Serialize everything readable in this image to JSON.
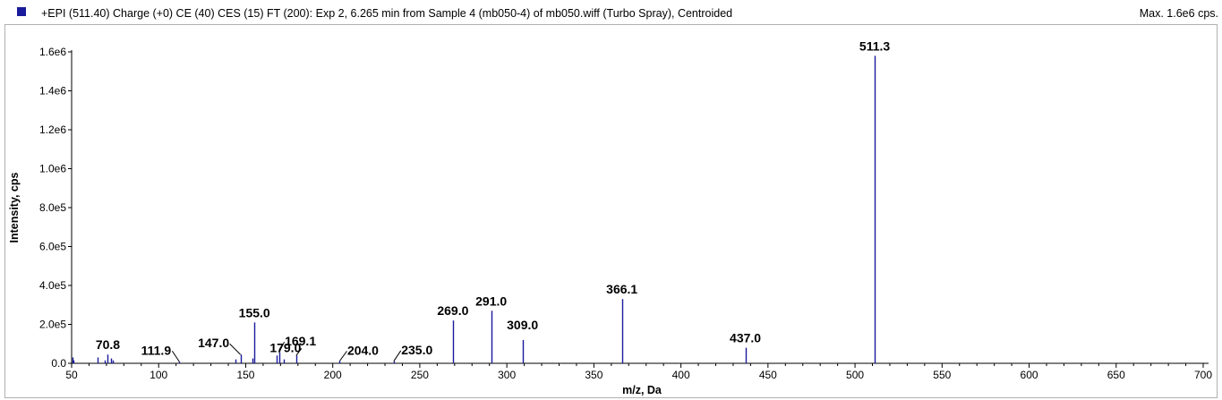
{
  "header": {
    "title": "+EPI (511.40) Charge (+0) CE (40) CES (15) FT (200): Exp 2, 6.265 min from Sample 4 (mb050-4) of mb050.wiff (Turbo Spray), Centroided",
    "max_label": "Max. 1.6e6 cps."
  },
  "colors": {
    "series": "#1a1a9c",
    "axis": "#000000",
    "frame": "#b0b0b0"
  },
  "chart_data": {
    "type": "bar",
    "xlabel": "m/z, Da",
    "ylabel": "Intensity, cps",
    "xlim": [
      50,
      700
    ],
    "ylim": [
      0,
      1600000
    ],
    "x_ticks": [
      50,
      100,
      150,
      200,
      250,
      300,
      350,
      400,
      450,
      500,
      550,
      600,
      650,
      700
    ],
    "x_tick_labels": [
      "50",
      "100",
      "150",
      "200",
      "250",
      "300",
      "350",
      "400",
      "450",
      "500",
      "550",
      "600",
      "650",
      "700"
    ],
    "y_ticks": [
      0,
      200000,
      400000,
      600000,
      800000,
      1000000,
      1200000,
      1400000,
      1600000
    ],
    "y_tick_labels": [
      "0.0",
      "2.0e5",
      "4.0e5",
      "6.0e5",
      "8.0e5",
      "1.0e6",
      "1.2e6",
      "1.4e6",
      "1.6e6"
    ],
    "peaks": [
      {
        "mz": 50.5,
        "intensity": 30000
      },
      {
        "mz": 51.2,
        "intensity": 15000
      },
      {
        "mz": 65.0,
        "intensity": 30000
      },
      {
        "mz": 69.0,
        "intensity": 15000
      },
      {
        "mz": 70.8,
        "intensity": 45000
      },
      {
        "mz": 72.5,
        "intensity": 25000
      },
      {
        "mz": 73.8,
        "intensity": 15000
      },
      {
        "mz": 111.9,
        "intensity": 8000
      },
      {
        "mz": 144.0,
        "intensity": 20000
      },
      {
        "mz": 147.0,
        "intensity": 45000
      },
      {
        "mz": 154.0,
        "intensity": 25000
      },
      {
        "mz": 155.0,
        "intensity": 210000
      },
      {
        "mz": 168.0,
        "intensity": 40000
      },
      {
        "mz": 169.1,
        "intensity": 55000
      },
      {
        "mz": 172.0,
        "intensity": 20000
      },
      {
        "mz": 179.0,
        "intensity": 40000
      },
      {
        "mz": 204.0,
        "intensity": 12000
      },
      {
        "mz": 235.0,
        "intensity": 10000
      },
      {
        "mz": 269.0,
        "intensity": 220000
      },
      {
        "mz": 291.0,
        "intensity": 270000
      },
      {
        "mz": 309.0,
        "intensity": 120000
      },
      {
        "mz": 366.1,
        "intensity": 330000
      },
      {
        "mz": 437.0,
        "intensity": 80000
      },
      {
        "mz": 511.3,
        "intensity": 1580000
      }
    ],
    "peak_labels": [
      {
        "text": "70.8",
        "mz": 70.8,
        "intensity": 45000
      },
      {
        "text": "111.9",
        "mz": 111.9,
        "intensity": 8000
      },
      {
        "text": "147.0",
        "mz": 147.0,
        "intensity": 45000
      },
      {
        "text": "155.0",
        "mz": 155.0,
        "intensity": 210000
      },
      {
        "text": "179.0",
        "mz": 179.0,
        "intensity": 40000
      },
      {
        "text": "169.1",
        "mz": 169.1,
        "intensity": 55000
      },
      {
        "text": "204.0",
        "mz": 204.0,
        "intensity": 12000
      },
      {
        "text": "235.0",
        "mz": 235.0,
        "intensity": 10000
      },
      {
        "text": "269.0",
        "mz": 269.0,
        "intensity": 220000
      },
      {
        "text": "291.0",
        "mz": 291.0,
        "intensity": 270000
      },
      {
        "text": "309.0",
        "mz": 309.0,
        "intensity": 120000
      },
      {
        "text": "366.1",
        "mz": 366.1,
        "intensity": 330000
      },
      {
        "text": "437.0",
        "mz": 437.0,
        "intensity": 80000
      },
      {
        "text": "511.3",
        "mz": 511.3,
        "intensity": 1580000
      }
    ],
    "grid": false
  }
}
